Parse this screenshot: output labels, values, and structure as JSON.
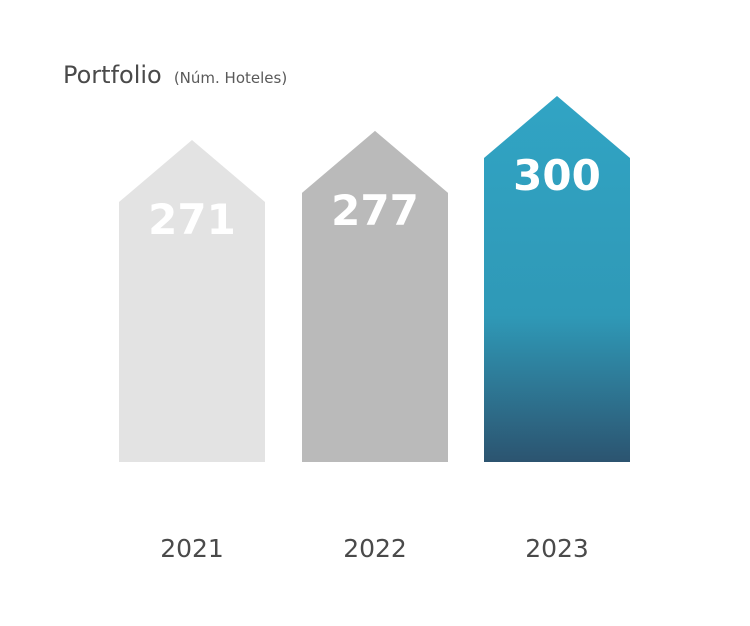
{
  "chart_data": {
    "type": "bar",
    "title": "Portfolio",
    "subtitle": "(Núm. Hoteles)",
    "categories": [
      "2021",
      "2022",
      "2023"
    ],
    "values": [
      271,
      277,
      300
    ],
    "bar_shape": "arrow",
    "ylim": [
      0,
      300
    ],
    "colors": [
      "#e3e3e3",
      "#bababa",
      "#31a4c4"
    ],
    "highlight_gradient_end": "#2c5470",
    "grid": false,
    "legend": "none"
  }
}
